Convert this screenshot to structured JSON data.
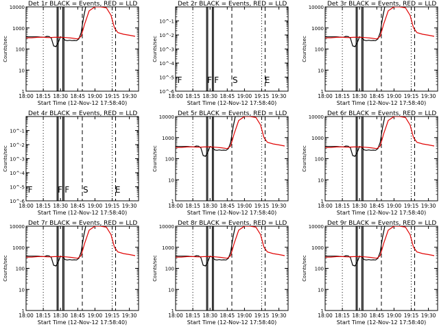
{
  "figure": {
    "xlabel": "Start Time (12-Nov-12 17:58:40)",
    "ylabel": "Counts/sec",
    "x_ticks": [
      "18:00",
      "18:15",
      "18:30",
      "18:45",
      "19:00",
      "19:15",
      "19:30"
    ],
    "y_ticks_log": [
      "1",
      "10",
      "100",
      "1000",
      "10000"
    ],
    "y_ticks_empty": [
      "10^-1",
      "10^-2",
      "10^-3",
      "10^-4",
      "10^-5",
      "10^-6"
    ],
    "colors": {
      "events": "#000000",
      "lld": "#e00000"
    }
  },
  "chart_data": [
    {
      "type": "line",
      "title": "Det 1r BLACK = Events, RED = LLD",
      "yscale": "log",
      "ylim": [
        1,
        10000
      ],
      "xlim": [
        "18:00",
        "19:38"
      ],
      "has_data": true,
      "markers": [],
      "series": [
        {
          "name": "Events",
          "color": "#000000",
          "x": [
            "18:00",
            "18:05",
            "18:10",
            "18:12",
            "18:14",
            "18:16",
            "18:18",
            "18:20",
            "18:22",
            "18:24",
            "18:26",
            "18:28",
            "18:30",
            "18:32",
            "18:34",
            "18:36",
            "18:38",
            "18:40",
            "18:42",
            "18:44",
            "18:46",
            "18:48",
            "18:50",
            "18:52",
            "18:54"
          ],
          "y": [
            380,
            380,
            380,
            370,
            365,
            360,
            400,
            390,
            330,
            140,
            130,
            200,
            380,
            340,
            260,
            250,
            260,
            250,
            255,
            250,
            300,
            600,
            3000,
            10000,
            11000
          ]
        },
        {
          "name": "LLD",
          "color": "#e00000",
          "x": [
            "18:00",
            "18:05",
            "18:10",
            "18:15",
            "18:20",
            "18:25",
            "18:30",
            "18:35",
            "18:40",
            "18:45",
            "18:48",
            "18:51",
            "18:55",
            "19:00",
            "19:05",
            "19:10",
            "19:14",
            "19:17",
            "19:20",
            "19:25",
            "19:30",
            "19:35"
          ],
          "y": [
            340,
            340,
            360,
            360,
            350,
            360,
            360,
            350,
            330,
            300,
            400,
            1500,
            6500,
            10000,
            10000,
            9000,
            4000,
            1000,
            600,
            500,
            450,
            400
          ]
        }
      ]
    },
    {
      "type": "line",
      "title": "Det 2r BLACK = Events, RED = LLD",
      "yscale": "log",
      "ylim": [
        1e-06,
        1
      ],
      "xlim": [
        "18:00",
        "19:38"
      ],
      "has_data": false,
      "markers": [
        "F",
        "F",
        "F",
        "S",
        "E"
      ],
      "series": []
    },
    {
      "type": "line",
      "title": "Det 3r BLACK = Events, RED = LLD",
      "yscale": "log",
      "ylim": [
        1,
        10000
      ],
      "xlim": [
        "18:00",
        "19:38"
      ],
      "has_data": true,
      "markers": [],
      "series": [
        {
          "name": "Events",
          "color": "#000000",
          "x": [
            "18:00",
            "18:05",
            "18:10",
            "18:12",
            "18:14",
            "18:16",
            "18:18",
            "18:20",
            "18:22",
            "18:24",
            "18:26",
            "18:28",
            "18:30",
            "18:32",
            "18:34",
            "18:36",
            "18:38",
            "18:40",
            "18:42",
            "18:44",
            "18:46",
            "18:48",
            "18:50",
            "18:52",
            "18:54"
          ],
          "y": [
            380,
            380,
            380,
            370,
            365,
            360,
            400,
            390,
            330,
            140,
            130,
            200,
            380,
            340,
            260,
            250,
            260,
            250,
            255,
            250,
            300,
            600,
            3000,
            10000,
            11000
          ]
        },
        {
          "name": "LLD",
          "color": "#e00000",
          "x": [
            "18:00",
            "18:05",
            "18:10",
            "18:15",
            "18:20",
            "18:25",
            "18:30",
            "18:35",
            "18:40",
            "18:45",
            "18:48",
            "18:51",
            "18:55",
            "19:00",
            "19:05",
            "19:10",
            "19:14",
            "19:17",
            "19:20",
            "19:25",
            "19:30",
            "19:35"
          ],
          "y": [
            340,
            340,
            360,
            360,
            350,
            360,
            360,
            350,
            330,
            300,
            400,
            1500,
            6500,
            10000,
            10000,
            9000,
            4000,
            1000,
            600,
            500,
            450,
            400
          ]
        }
      ]
    },
    {
      "type": "line",
      "title": "Det 4r BLACK = Events, RED = LLD",
      "yscale": "log",
      "ylim": [
        1e-06,
        1
      ],
      "xlim": [
        "18:00",
        "19:38"
      ],
      "has_data": false,
      "markers": [
        "F",
        "F",
        "F",
        "S",
        "E"
      ],
      "series": []
    },
    {
      "type": "line",
      "title": "Det 5r BLACK = Events, RED = LLD",
      "yscale": "log",
      "ylim": [
        1,
        10000
      ],
      "xlim": [
        "18:00",
        "19:38"
      ],
      "has_data": true,
      "markers": [],
      "series": [
        {
          "name": "Events",
          "color": "#000000",
          "x": [
            "18:00",
            "18:05",
            "18:10",
            "18:12",
            "18:14",
            "18:16",
            "18:18",
            "18:20",
            "18:22",
            "18:24",
            "18:26",
            "18:28",
            "18:30",
            "18:32",
            "18:34",
            "18:36",
            "18:38",
            "18:40",
            "18:42",
            "18:44",
            "18:46",
            "18:48",
            "18:50",
            "18:52",
            "18:54"
          ],
          "y": [
            380,
            380,
            380,
            370,
            365,
            360,
            400,
            390,
            330,
            140,
            130,
            200,
            380,
            340,
            260,
            250,
            260,
            250,
            255,
            250,
            300,
            600,
            3000,
            10000,
            11000
          ]
        },
        {
          "name": "LLD",
          "color": "#e00000",
          "x": [
            "18:00",
            "18:05",
            "18:10",
            "18:15",
            "18:20",
            "18:25",
            "18:30",
            "18:35",
            "18:40",
            "18:45",
            "18:48",
            "18:51",
            "18:55",
            "19:00",
            "19:05",
            "19:10",
            "19:14",
            "19:17",
            "19:20",
            "19:25",
            "19:30",
            "19:35"
          ],
          "y": [
            340,
            340,
            360,
            360,
            350,
            360,
            360,
            350,
            330,
            300,
            400,
            1500,
            6500,
            10000,
            10000,
            9000,
            4000,
            1000,
            600,
            500,
            450,
            400
          ]
        }
      ]
    },
    {
      "type": "line",
      "title": "Det 6r BLACK = Events, RED = LLD",
      "yscale": "log",
      "ylim": [
        1,
        10000
      ],
      "xlim": [
        "18:00",
        "19:38"
      ],
      "has_data": true,
      "markers": [],
      "series": [
        {
          "name": "Events",
          "color": "#000000",
          "x": [
            "18:00",
            "18:05",
            "18:10",
            "18:12",
            "18:14",
            "18:16",
            "18:18",
            "18:20",
            "18:22",
            "18:24",
            "18:26",
            "18:28",
            "18:30",
            "18:32",
            "18:34",
            "18:36",
            "18:38",
            "18:40",
            "18:42",
            "18:44",
            "18:46",
            "18:48",
            "18:50",
            "18:52",
            "18:54"
          ],
          "y": [
            380,
            380,
            380,
            370,
            365,
            360,
            400,
            390,
            330,
            140,
            130,
            200,
            380,
            340,
            260,
            250,
            260,
            250,
            255,
            250,
            300,
            600,
            3000,
            10000,
            11000
          ]
        },
        {
          "name": "LLD",
          "color": "#e00000",
          "x": [
            "18:00",
            "18:05",
            "18:10",
            "18:15",
            "18:20",
            "18:25",
            "18:30",
            "18:35",
            "18:40",
            "18:45",
            "18:48",
            "18:51",
            "18:55",
            "19:00",
            "19:05",
            "19:10",
            "19:14",
            "19:17",
            "19:20",
            "19:25",
            "19:30",
            "19:35"
          ],
          "y": [
            340,
            340,
            360,
            360,
            350,
            360,
            360,
            350,
            330,
            300,
            400,
            1500,
            6500,
            10000,
            10000,
            9000,
            4000,
            1000,
            600,
            500,
            450,
            400
          ]
        }
      ]
    },
    {
      "type": "line",
      "title": "Det 7r BLACK = Events, RED = LLD",
      "yscale": "log",
      "ylim": [
        1,
        10000
      ],
      "xlim": [
        "18:00",
        "19:38"
      ],
      "has_data": true,
      "markers": [],
      "series": [
        {
          "name": "Events",
          "color": "#000000",
          "x": [
            "18:00",
            "18:05",
            "18:10",
            "18:12",
            "18:14",
            "18:16",
            "18:18",
            "18:20",
            "18:22",
            "18:24",
            "18:26",
            "18:28",
            "18:30",
            "18:32",
            "18:34",
            "18:36",
            "18:38",
            "18:40",
            "18:42",
            "18:44",
            "18:46",
            "18:48",
            "18:50",
            "18:52",
            "18:54"
          ],
          "y": [
            380,
            380,
            380,
            370,
            365,
            360,
            400,
            390,
            330,
            140,
            130,
            200,
            380,
            340,
            260,
            250,
            260,
            250,
            255,
            250,
            300,
            600,
            3000,
            10000,
            11000
          ]
        },
        {
          "name": "LLD",
          "color": "#e00000",
          "x": [
            "18:00",
            "18:05",
            "18:10",
            "18:15",
            "18:20",
            "18:25",
            "18:30",
            "18:35",
            "18:40",
            "18:45",
            "18:48",
            "18:51",
            "18:55",
            "19:00",
            "19:05",
            "19:10",
            "19:14",
            "19:17",
            "19:20",
            "19:25",
            "19:30",
            "19:35"
          ],
          "y": [
            340,
            340,
            360,
            360,
            350,
            360,
            360,
            350,
            330,
            300,
            400,
            1500,
            6500,
            10000,
            10000,
            9000,
            4000,
            1000,
            600,
            500,
            450,
            400
          ]
        }
      ]
    },
    {
      "type": "line",
      "title": "Det 8r BLACK = Events, RED = LLD",
      "yscale": "log",
      "ylim": [
        1,
        10000
      ],
      "xlim": [
        "18:00",
        "19:38"
      ],
      "has_data": true,
      "markers": [],
      "series": [
        {
          "name": "Events",
          "color": "#000000",
          "x": [
            "18:00",
            "18:05",
            "18:10",
            "18:12",
            "18:14",
            "18:16",
            "18:18",
            "18:20",
            "18:22",
            "18:24",
            "18:26",
            "18:28",
            "18:30",
            "18:32",
            "18:34",
            "18:36",
            "18:38",
            "18:40",
            "18:42",
            "18:44",
            "18:46",
            "18:48",
            "18:50",
            "18:52",
            "18:54"
          ],
          "y": [
            380,
            380,
            380,
            370,
            365,
            360,
            400,
            390,
            330,
            140,
            130,
            200,
            380,
            340,
            260,
            250,
            260,
            250,
            255,
            250,
            300,
            600,
            3000,
            10000,
            11000
          ]
        },
        {
          "name": "LLD",
          "color": "#e00000",
          "x": [
            "18:00",
            "18:05",
            "18:10",
            "18:15",
            "18:20",
            "18:25",
            "18:30",
            "18:35",
            "18:40",
            "18:45",
            "18:48",
            "18:51",
            "18:55",
            "19:00",
            "19:05",
            "19:10",
            "19:14",
            "19:17",
            "19:20",
            "19:25",
            "19:30",
            "19:35"
          ],
          "y": [
            340,
            340,
            360,
            360,
            350,
            360,
            360,
            350,
            330,
            300,
            400,
            1500,
            6500,
            10000,
            10000,
            9000,
            4000,
            1000,
            600,
            500,
            450,
            400
          ]
        }
      ]
    },
    {
      "type": "line",
      "title": "Det 9r BLACK = Events, RED = LLD",
      "yscale": "log",
      "ylim": [
        1,
        10000
      ],
      "xlim": [
        "18:00",
        "19:38"
      ],
      "has_data": true,
      "markers": [],
      "series": [
        {
          "name": "Events",
          "color": "#000000",
          "x": [
            "18:00",
            "18:05",
            "18:10",
            "18:12",
            "18:14",
            "18:16",
            "18:18",
            "18:20",
            "18:22",
            "18:24",
            "18:26",
            "18:28",
            "18:30",
            "18:32",
            "18:34",
            "18:36",
            "18:38",
            "18:40",
            "18:42",
            "18:44",
            "18:46",
            "18:48",
            "18:50",
            "18:52",
            "18:54"
          ],
          "y": [
            380,
            380,
            380,
            370,
            365,
            360,
            400,
            390,
            330,
            140,
            130,
            200,
            380,
            340,
            260,
            250,
            260,
            250,
            255,
            250,
            300,
            600,
            3000,
            10000,
            11000
          ]
        },
        {
          "name": "LLD",
          "color": "#e00000",
          "x": [
            "18:00",
            "18:05",
            "18:10",
            "18:15",
            "18:20",
            "18:25",
            "18:30",
            "18:35",
            "18:40",
            "18:45",
            "18:48",
            "18:51",
            "18:55",
            "19:00",
            "19:05",
            "19:10",
            "19:14",
            "19:17",
            "19:20",
            "19:25",
            "19:30",
            "19:35"
          ],
          "y": [
            340,
            340,
            360,
            360,
            350,
            360,
            360,
            350,
            330,
            300,
            400,
            1500,
            6500,
            10000,
            10000,
            9000,
            4000,
            1000,
            600,
            500,
            450,
            400
          ]
        }
      ]
    }
  ]
}
